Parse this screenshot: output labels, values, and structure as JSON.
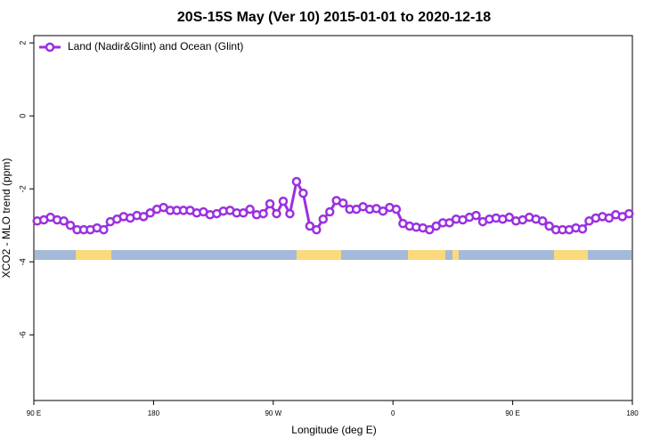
{
  "chart_data": {
    "type": "line",
    "title": "20S-15S May (Ver 10)   2015-01-01 to 2020-12-18",
    "xlabel": "Longitude (deg E)",
    "ylabel": "XCO2 - MLO trend (ppm)",
    "legend": "top-left",
    "xlim": [
      90,
      540
    ],
    "xticks": [
      {
        "value": 90,
        "label": "90 E"
      },
      180,
      {
        "value": 270,
        "label": "90 W"
      },
      {
        "value": 360,
        "label": "0"
      },
      {
        "value": 450,
        "label": "90 E"
      },
      {
        "value": 540,
        "label": "180"
      }
    ],
    "ylim": [
      -7.8,
      2.2
    ],
    "yticks": [
      -6,
      -4,
      -2,
      0,
      2
    ],
    "x": [
      92.5,
      97.5,
      102.5,
      107.5,
      112.5,
      117.5,
      122.5,
      127.5,
      132.5,
      137.5,
      142.5,
      147.5,
      152.5,
      157.5,
      162.5,
      167.5,
      172.5,
      177.5,
      182.5,
      187.5,
      192.5,
      197.5,
      202.5,
      207.5,
      212.5,
      217.5,
      222.5,
      227.5,
      232.5,
      237.5,
      242.5,
      247.5,
      252.5,
      257.5,
      262.5,
      267.5,
      272.5,
      277.5,
      282.5,
      287.5,
      292.5,
      297.5,
      302.5,
      307.5,
      312.5,
      317.5,
      322.5,
      327.5,
      332.5,
      337.5,
      342.5,
      347.5,
      352.5,
      357.5,
      362.5,
      367.5,
      372.5,
      377.5,
      382.5,
      387.5,
      392.5,
      397.5,
      402.5,
      407.5,
      412.5,
      417.5,
      422.5,
      427.5,
      432.5,
      437.5,
      442.5,
      447.5,
      452.5,
      457.5,
      462.5,
      467.5,
      472.5,
      477.5,
      482.5,
      487.5,
      492.5,
      497.5,
      502.5,
      507.5,
      512.5,
      517.5,
      522.5,
      527.5,
      532.5,
      537.5
    ],
    "series": [
      {
        "name": "Land (Nadir&Glint) and Ocean (Glint)",
        "color": "#9b30e0",
        "values": [
          -2.88,
          -2.85,
          -2.78,
          -2.85,
          -2.88,
          -3.0,
          -3.12,
          -3.12,
          -3.12,
          -3.07,
          -3.12,
          -2.9,
          -2.83,
          -2.76,
          -2.8,
          -2.73,
          -2.76,
          -2.66,
          -2.56,
          -2.51,
          -2.59,
          -2.59,
          -2.59,
          -2.59,
          -2.66,
          -2.63,
          -2.71,
          -2.68,
          -2.61,
          -2.59,
          -2.66,
          -2.66,
          -2.56,
          -2.71,
          -2.68,
          -2.41,
          -2.68,
          -2.34,
          -2.68,
          -1.8,
          -2.12,
          -3.02,
          -3.12,
          -2.83,
          -2.63,
          -2.32,
          -2.39,
          -2.56,
          -2.56,
          -2.49,
          -2.56,
          -2.54,
          -2.61,
          -2.51,
          -2.56,
          -2.95,
          -3.02,
          -3.05,
          -3.07,
          -3.12,
          -3.02,
          -2.93,
          -2.93,
          -2.83,
          -2.85,
          -2.78,
          -2.73,
          -2.9,
          -2.83,
          -2.8,
          -2.83,
          -2.78,
          -2.88,
          -2.85,
          -2.78,
          -2.83,
          -2.88,
          -3.02,
          -3.12,
          -3.12,
          -3.12,
          -3.07,
          -3.1,
          -2.88,
          -2.8,
          -2.76,
          -2.8,
          -2.71,
          -2.76,
          -2.68
        ]
      }
    ]
  }
}
